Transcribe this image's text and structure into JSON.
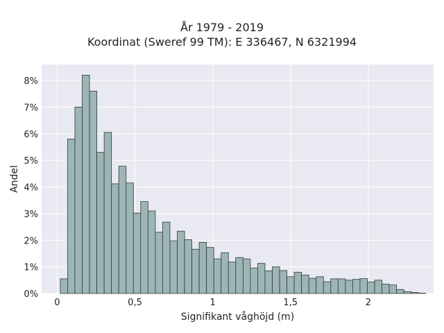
{
  "chart_data": {
    "type": "bar",
    "title": [
      "År 1979 - 2019",
      "Koordinat (Sweref 99 TM): E 336467, N 6321994"
    ],
    "xlabel": "Signifikant våghöjd (m)",
    "ylabel": "Andel",
    "xlim": [
      -0.1,
      2.42
    ],
    "ylim": [
      0,
      8.6
    ],
    "xticks": [
      {
        "value": 0,
        "label": "0"
      },
      {
        "value": 0.5,
        "label": "0,5"
      },
      {
        "value": 1,
        "label": "1"
      },
      {
        "value": 1.5,
        "label": "1,5"
      },
      {
        "value": 2,
        "label": "2"
      }
    ],
    "yticks": [
      {
        "value": 0,
        "label": "0%"
      },
      {
        "value": 1,
        "label": "1%"
      },
      {
        "value": 2,
        "label": "2%"
      },
      {
        "value": 3,
        "label": "3%"
      },
      {
        "value": 4,
        "label": "4%"
      },
      {
        "value": 5,
        "label": "5%"
      },
      {
        "value": 6,
        "label": "6%"
      },
      {
        "value": 7,
        "label": "7%"
      },
      {
        "value": 8,
        "label": "8%"
      }
    ],
    "bin_start": 0.02,
    "bin_width": 0.047,
    "values": [
      0.55,
      5.8,
      7.0,
      8.2,
      7.6,
      5.3,
      6.05,
      4.12,
      4.78,
      4.15,
      3.02,
      3.45,
      3.1,
      2.3,
      2.68,
      1.98,
      2.34,
      2.02,
      1.66,
      1.92,
      1.73,
      1.3,
      1.53,
      1.18,
      1.35,
      1.3,
      0.96,
      1.13,
      0.85,
      1.0,
      0.86,
      0.63,
      0.8,
      0.69,
      0.57,
      0.63,
      0.44,
      0.55,
      0.55,
      0.5,
      0.53,
      0.56,
      0.43,
      0.5,
      0.35,
      0.32,
      0.15,
      0.07,
      0.04,
      0.01
    ],
    "grid": true,
    "colors": {
      "bar_fill": "#9db5b5",
      "bar_edge": "#2f3a3a",
      "plot_background": "#e9e9f1",
      "grid": "#ffffff"
    }
  }
}
